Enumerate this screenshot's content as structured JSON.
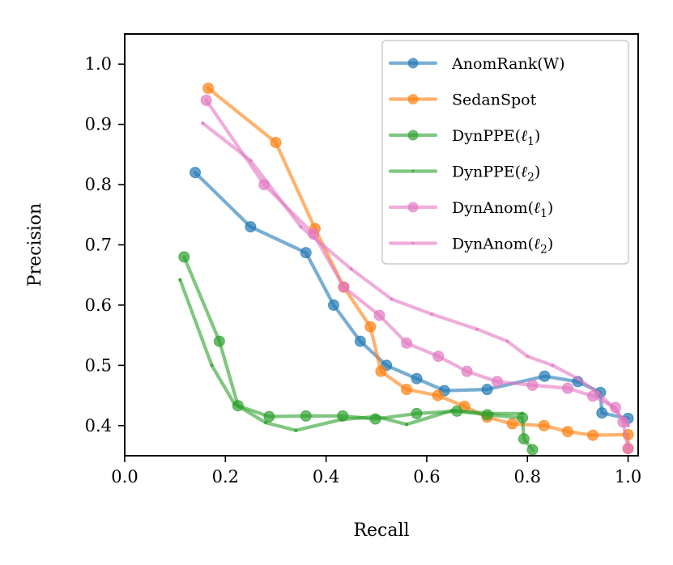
{
  "chart_data": {
    "type": "line",
    "title": "",
    "xlabel": "Recall",
    "ylabel": "Precision",
    "xlim": [
      0.0,
      1.02
    ],
    "ylim": [
      0.35,
      1.05
    ],
    "xticks": [
      0.0,
      0.2,
      0.4,
      0.6,
      0.8,
      1.0
    ],
    "xtick_labels": [
      "0.0",
      "0.2",
      "0.4",
      "0.6",
      "0.8",
      "1.0"
    ],
    "yticks": [
      0.4,
      0.5,
      0.6,
      0.7,
      0.8,
      0.9,
      1.0
    ],
    "ytick_labels": [
      "0.4",
      "0.5",
      "0.6",
      "0.7",
      "0.8",
      "0.9",
      "1.0"
    ],
    "grid": false,
    "legend_position": "top-right",
    "series": [
      {
        "name": "AnomRank(W)",
        "color": "#1f77b4",
        "marker": "circle",
        "x": [
          0.14,
          0.25,
          0.36,
          0.415,
          0.468,
          0.52,
          0.58,
          0.635,
          0.72,
          0.834,
          0.9,
          0.945,
          0.948,
          1.0
        ],
        "y": [
          0.82,
          0.73,
          0.687,
          0.6,
          0.54,
          0.5,
          0.478,
          0.458,
          0.46,
          0.482,
          0.473,
          0.455,
          0.421,
          0.412
        ]
      },
      {
        "name": "SedanSpot",
        "color": "#ff7f0e",
        "marker": "circle",
        "x": [
          0.166,
          0.3,
          0.378,
          0.435,
          0.488,
          0.509,
          0.56,
          0.622,
          0.675,
          0.72,
          0.77,
          0.833,
          0.88,
          0.93,
          1.0,
          1.0
        ],
        "y": [
          0.96,
          0.87,
          0.727,
          0.63,
          0.564,
          0.49,
          0.46,
          0.45,
          0.432,
          0.414,
          0.403,
          0.4,
          0.39,
          0.384,
          0.385,
          0.362
        ]
      },
      {
        "name": "DynPPE(ℓ1)",
        "label_main": "DynPPE(",
        "label_sub": "1",
        "label_end": ")",
        "color": "#2ca02c",
        "marker": "circle",
        "x": [
          0.118,
          0.188,
          0.225,
          0.287,
          0.36,
          0.433,
          0.498,
          0.58,
          0.66,
          0.72,
          0.79,
          0.793,
          0.81
        ],
        "y": [
          0.68,
          0.54,
          0.433,
          0.415,
          0.416,
          0.416,
          0.411,
          0.42,
          0.424,
          0.418,
          0.413,
          0.378,
          0.36
        ]
      },
      {
        "name": "DynPPE(ℓ2)",
        "label_main": "DynPPE(",
        "label_sub": "2",
        "label_end": ")",
        "color": "#2ca02c",
        "marker": "dot",
        "x": [
          0.11,
          0.173,
          0.218,
          0.28,
          0.34,
          0.43,
          0.5,
          0.56,
          0.65,
          0.73,
          0.79
        ],
        "y": [
          0.642,
          0.5,
          0.436,
          0.405,
          0.392,
          0.41,
          0.415,
          0.402,
          0.425,
          0.42,
          0.42
        ]
      },
      {
        "name": "DynAnom(ℓ1)",
        "label_main": "DynAnom(",
        "label_sub": "1",
        "label_end": ")",
        "color": "#e377c2",
        "marker": "circle",
        "x": [
          0.162,
          0.277,
          0.375,
          0.435,
          0.506,
          0.56,
          0.623,
          0.68,
          0.74,
          0.81,
          0.88,
          0.93,
          0.975,
          0.99,
          1.0
        ],
        "y": [
          0.94,
          0.8,
          0.718,
          0.63,
          0.583,
          0.537,
          0.515,
          0.49,
          0.473,
          0.467,
          0.462,
          0.449,
          0.43,
          0.406,
          0.362
        ]
      },
      {
        "name": "DynAnom(ℓ2)",
        "label_main": "DynAnom(",
        "label_sub": "2",
        "label_end": ")",
        "color": "#e377c2",
        "marker": "dot",
        "x": [
          0.155,
          0.25,
          0.35,
          0.45,
          0.53,
          0.61,
          0.7,
          0.76,
          0.8,
          0.85,
          0.9,
          0.94,
          0.97,
          1.0
        ],
        "y": [
          0.902,
          0.84,
          0.73,
          0.66,
          0.61,
          0.585,
          0.56,
          0.54,
          0.515,
          0.5,
          0.478,
          0.455,
          0.43,
          0.4
        ]
      }
    ]
  }
}
